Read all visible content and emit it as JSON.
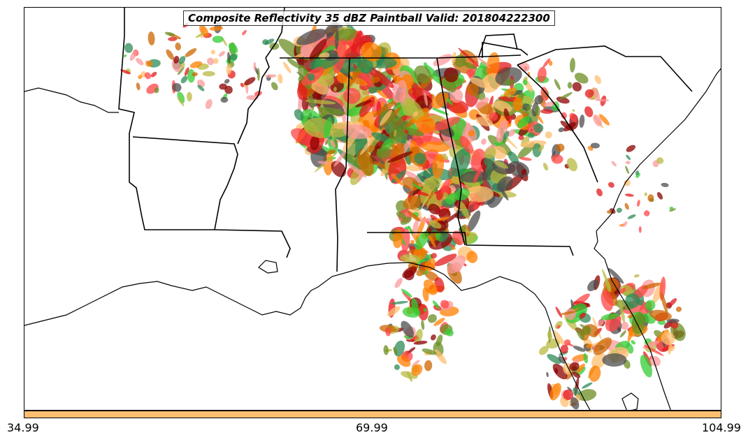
{
  "title": "Composite Reflectivity 35 dBZ Paintball Valid: 201804222300",
  "colorbar": {
    "color": "#fdbf6f",
    "tick_labels": [
      "34.99",
      "69.99",
      "104.99"
    ]
  },
  "paintball_colors": [
    "#e31a1c",
    "#ff7f00",
    "#33cc33",
    "#6b8e23",
    "#fdbf6f",
    "#fb9a99",
    "#8b0000",
    "#4d4d4d",
    "#b8b840",
    "#ff4444",
    "#2e8b57",
    "#cc6600"
  ],
  "map_features": [
    "coastline-lines",
    "state-border-lines"
  ]
}
